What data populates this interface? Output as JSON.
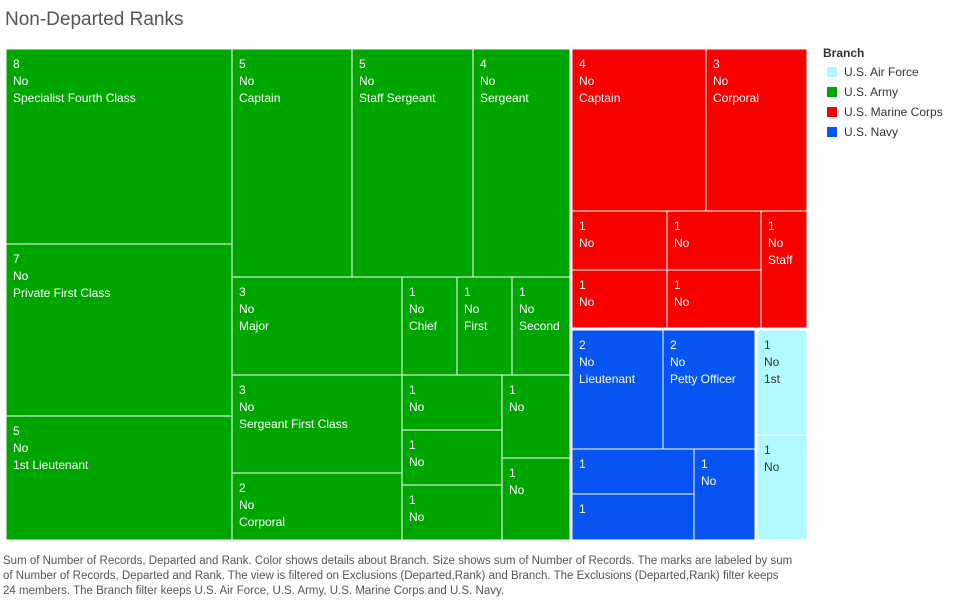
{
  "title": "Non-Departed Ranks",
  "legend": {
    "title": "Branch",
    "items": [
      {
        "label": "U.S. Air Force",
        "color": "#b2f9ff"
      },
      {
        "label": "U.S. Army",
        "color": "#00a600"
      },
      {
        "label": "U.S. Marine Corps",
        "color": "#f80000"
      },
      {
        "label": "U.S. Navy",
        "color": "#0655f2"
      }
    ]
  },
  "caption": "Sum of Number of Records, Departed and Rank.  Color shows details about Branch.  Size shows sum of Number of Records.  The marks are labeled by sum of Number of Records, Departed and Rank. The view is filtered on Exclusions (Departed,Rank) and Branch. The Exclusions (Departed,Rank) filter keeps 24 members. The Branch filter keeps U.S. Air Force, U.S. Army, U.S. Marine Corps and U.S. Navy.",
  "chart_data": {
    "type": "treemap",
    "size_measure": "Number of Records",
    "color_dimension": "Branch",
    "marks": [
      {
        "branch": "U.S. Army",
        "records": 8,
        "departed": "No",
        "rank": "Specialist Fourth Class"
      },
      {
        "branch": "U.S. Army",
        "records": 7,
        "departed": "No",
        "rank": "Private First Class"
      },
      {
        "branch": "U.S. Army",
        "records": 5,
        "departed": "No",
        "rank": "1st Lieutenant"
      },
      {
        "branch": "U.S. Army",
        "records": 5,
        "departed": "No",
        "rank": "Captain"
      },
      {
        "branch": "U.S. Army",
        "records": 5,
        "departed": "No",
        "rank": "Staff Sergeant"
      },
      {
        "branch": "U.S. Army",
        "records": 4,
        "departed": "No",
        "rank": "Sergeant"
      },
      {
        "branch": "U.S. Army",
        "records": 3,
        "departed": "No",
        "rank": "Major"
      },
      {
        "branch": "U.S. Army",
        "records": 1,
        "departed": "No",
        "rank": "Chief"
      },
      {
        "branch": "U.S. Army",
        "records": 1,
        "departed": "No",
        "rank": "First"
      },
      {
        "branch": "U.S. Army",
        "records": 1,
        "departed": "No",
        "rank": "Second"
      },
      {
        "branch": "U.S. Army",
        "records": 3,
        "departed": "No",
        "rank": "Sergeant First Class"
      },
      {
        "branch": "U.S. Army",
        "records": 2,
        "departed": "No",
        "rank": "Corporal"
      },
      {
        "branch": "U.S. Army",
        "records": 1,
        "departed": "No",
        "rank": ""
      },
      {
        "branch": "U.S. Army",
        "records": 1,
        "departed": "No",
        "rank": ""
      },
      {
        "branch": "U.S. Army",
        "records": 1,
        "departed": "No",
        "rank": ""
      },
      {
        "branch": "U.S. Army",
        "records": 1,
        "departed": "No",
        "rank": ""
      },
      {
        "branch": "U.S. Army",
        "records": 1,
        "departed": "No",
        "rank": ""
      },
      {
        "branch": "U.S. Marine Corps",
        "records": 4,
        "departed": "No",
        "rank": "Captain"
      },
      {
        "branch": "U.S. Marine Corps",
        "records": 3,
        "departed": "No",
        "rank": "Corporal"
      },
      {
        "branch": "U.S. Marine Corps",
        "records": 1,
        "departed": "No",
        "rank": ""
      },
      {
        "branch": "U.S. Marine Corps",
        "records": 1,
        "departed": "No",
        "rank": ""
      },
      {
        "branch": "U.S. Marine Corps",
        "records": 1,
        "departed": "No",
        "rank": "Staff"
      },
      {
        "branch": "U.S. Marine Corps",
        "records": 1,
        "departed": "No",
        "rank": ""
      },
      {
        "branch": "U.S. Marine Corps",
        "records": 1,
        "departed": "No",
        "rank": ""
      },
      {
        "branch": "U.S. Navy",
        "records": 2,
        "departed": "No",
        "rank": "Lieutenant"
      },
      {
        "branch": "U.S. Navy",
        "records": 2,
        "departed": "No",
        "rank": "Petty Officer"
      },
      {
        "branch": "U.S. Navy",
        "records": 1,
        "departed": "",
        "rank": ""
      },
      {
        "branch": "U.S. Navy",
        "records": 1,
        "departed": "No",
        "rank": ""
      },
      {
        "branch": "U.S. Navy",
        "records": 1,
        "departed": "",
        "rank": ""
      },
      {
        "branch": "U.S. Air Force",
        "records": 1,
        "departed": "No",
        "rank": "1st"
      },
      {
        "branch": "U.S. Air Force",
        "records": 1,
        "departed": "No",
        "rank": ""
      }
    ]
  }
}
